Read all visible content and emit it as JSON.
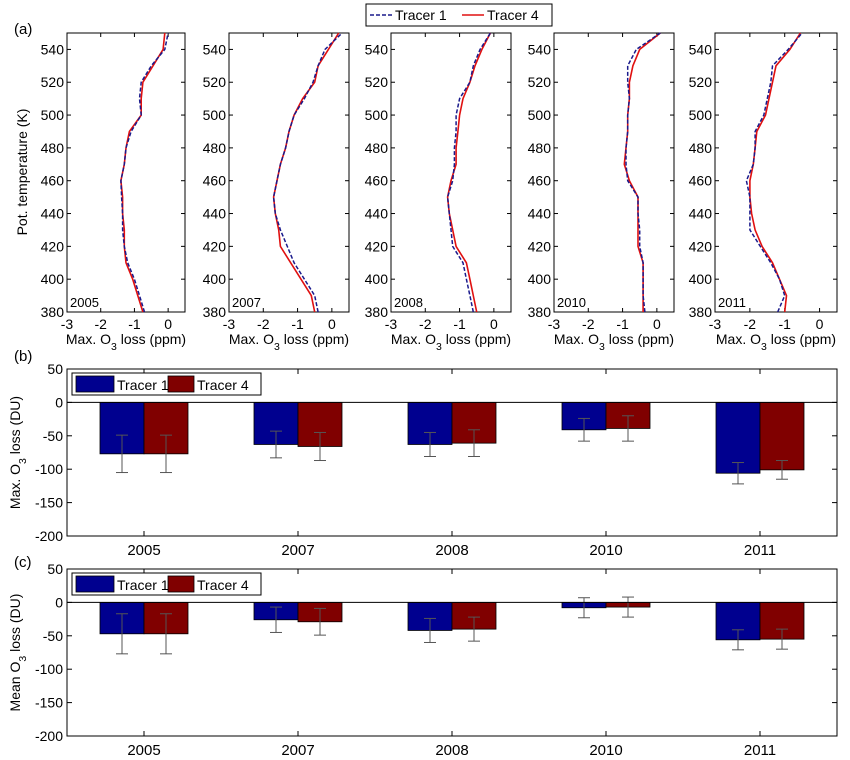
{
  "colors": {
    "tracer1": "#1a1a8c",
    "tracer4": "#e01010",
    "bar1": "#00008f",
    "bar4": "#800000"
  },
  "chart_data": [
    {
      "panel": "(a)",
      "type": "line",
      "ylabel": "Pot. temperature (K)",
      "xlabel_prefix": "Max. O",
      "xlabel_sub": "3",
      "xlabel_suffix": " loss (ppm)",
      "xlim": [
        -3,
        0.5
      ],
      "ylim": [
        380,
        550
      ],
      "xticks": [
        -3,
        -2,
        -1,
        0
      ],
      "yticks": [
        380,
        400,
        420,
        440,
        460,
        480,
        500,
        520,
        540
      ],
      "legend": [
        "Tracer 1",
        "Tracer 4"
      ],
      "legend_position": "top-center",
      "y": [
        380,
        390,
        400,
        410,
        420,
        430,
        440,
        450,
        460,
        470,
        480,
        490,
        500,
        510,
        520,
        530,
        540,
        550
      ],
      "subplots": [
        {
          "label": "2005",
          "tracer1": [
            -0.7,
            -0.85,
            -1.0,
            -1.2,
            -1.3,
            -1.35,
            -1.35,
            -1.38,
            -1.4,
            -1.3,
            -1.25,
            -1.1,
            -0.8,
            -0.85,
            -0.8,
            -0.5,
            -0.1,
            0.0
          ],
          "tracer4": [
            -0.75,
            -0.9,
            -1.05,
            -1.25,
            -1.3,
            -1.3,
            -1.35,
            -1.35,
            -1.4,
            -1.3,
            -1.25,
            -1.15,
            -0.8,
            -0.8,
            -0.75,
            -0.45,
            -0.15,
            -0.1
          ]
        },
        {
          "label": "2007",
          "tracer1": [
            -0.4,
            -0.5,
            -0.8,
            -1.1,
            -1.3,
            -1.5,
            -1.65,
            -1.7,
            -1.6,
            -1.5,
            -1.35,
            -1.25,
            -1.1,
            -0.8,
            -0.55,
            -0.4,
            -0.2,
            0.3
          ],
          "tracer4": [
            -0.5,
            -0.6,
            -0.9,
            -1.2,
            -1.5,
            -1.55,
            -1.65,
            -1.7,
            -1.6,
            -1.5,
            -1.35,
            -1.25,
            -1.1,
            -0.85,
            -0.5,
            -0.4,
            -0.1,
            0.2
          ]
        },
        {
          "label": "2008",
          "tracer1": [
            -0.6,
            -0.7,
            -0.8,
            -0.9,
            -1.2,
            -1.25,
            -1.3,
            -1.35,
            -1.2,
            -1.15,
            -1.15,
            -1.1,
            -1.1,
            -1.0,
            -0.7,
            -0.6,
            -0.4,
            -0.1
          ],
          "tracer4": [
            -0.5,
            -0.6,
            -0.7,
            -0.8,
            -1.1,
            -1.2,
            -1.3,
            -1.35,
            -1.25,
            -1.1,
            -1.1,
            -1.05,
            -1.0,
            -0.9,
            -0.7,
            -0.55,
            -0.35,
            -0.1
          ]
        },
        {
          "label": "2010",
          "tracer1": [
            -0.35,
            -0.4,
            -0.4,
            -0.4,
            -0.5,
            -0.5,
            -0.55,
            -0.55,
            -0.85,
            -0.9,
            -0.9,
            -0.85,
            -0.85,
            -0.8,
            -0.85,
            -0.85,
            -0.6,
            0.1
          ],
          "tracer4": [
            -0.4,
            -0.4,
            -0.4,
            -0.4,
            -0.55,
            -0.55,
            -0.55,
            -0.55,
            -0.8,
            -0.95,
            -0.9,
            -0.85,
            -0.85,
            -0.8,
            -0.8,
            -0.7,
            -0.5,
            0.1
          ]
        },
        {
          "label": "2011",
          "tracer1": [
            -1.2,
            -1.0,
            -1.15,
            -1.4,
            -1.7,
            -2.0,
            -2.0,
            -2.0,
            -2.1,
            -1.9,
            -1.85,
            -1.85,
            -1.6,
            -1.5,
            -1.4,
            -1.35,
            -0.9,
            -0.5
          ],
          "tracer4": [
            -1.0,
            -0.95,
            -1.15,
            -1.35,
            -1.65,
            -1.85,
            -1.95,
            -2.0,
            -2.0,
            -1.9,
            -1.85,
            -1.8,
            -1.55,
            -1.45,
            -1.35,
            -1.25,
            -0.85,
            -0.55
          ]
        }
      ]
    },
    {
      "panel": "(b)",
      "type": "bar",
      "ylabel_prefix": "Max. O",
      "ylabel_sub": "3",
      "ylabel_suffix": " loss (DU)",
      "categories": [
        "2005",
        "2007",
        "2008",
        "2010",
        "2011"
      ],
      "ylim": [
        -200,
        50
      ],
      "yticks": [
        -200,
        -150,
        -100,
        -50,
        0,
        50
      ],
      "legend_position": "top-left",
      "series": [
        {
          "name": "Tracer 1",
          "values": [
            -77,
            -63,
            -63,
            -41,
            -106
          ],
          "error": [
            28,
            20,
            18,
            17,
            16
          ]
        },
        {
          "name": "Tracer 4",
          "values": [
            -77,
            -66,
            -61,
            -39,
            -101
          ],
          "error": [
            28,
            21,
            20,
            19,
            14
          ]
        }
      ]
    },
    {
      "panel": "(c)",
      "type": "bar",
      "ylabel_prefix": "Mean O",
      "ylabel_sub": "3",
      "ylabel_suffix": " loss (DU)",
      "categories": [
        "2005",
        "2007",
        "2008",
        "2010",
        "2011"
      ],
      "ylim": [
        -200,
        50
      ],
      "yticks": [
        -200,
        -150,
        -100,
        -50,
        0,
        50
      ],
      "legend_position": "top-left",
      "series": [
        {
          "name": "Tracer 1",
          "values": [
            -47,
            -26,
            -42,
            -8,
            -56
          ],
          "error": [
            30,
            19,
            18,
            15,
            15
          ]
        },
        {
          "name": "Tracer 4",
          "values": [
            -47,
            -29,
            -40,
            -7,
            -55
          ],
          "error": [
            30,
            20,
            18,
            15,
            15
          ]
        }
      ]
    }
  ]
}
